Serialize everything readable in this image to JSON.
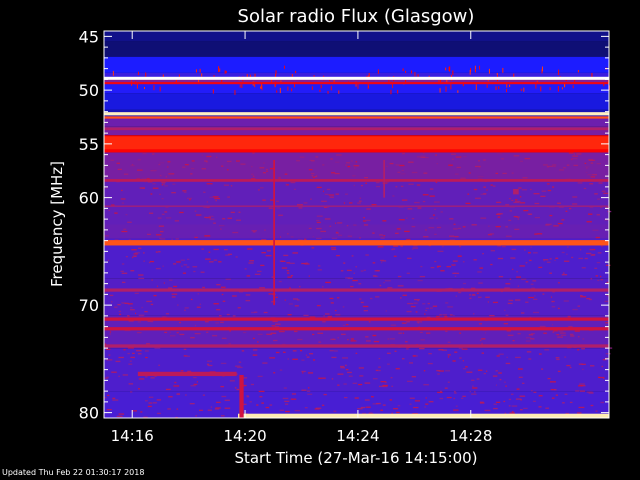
{
  "chart_data": {
    "type": "heatmap",
    "title": "Solar radio Flux (Glasgow)",
    "xlabel": "Start Time (27-Mar-16 14:15:00)",
    "ylabel": "Frequency [MHz]",
    "x_unit": "minutes after 14:15:00",
    "xlim": [
      0,
      17.9
    ],
    "ylim": [
      44.5,
      80.5
    ],
    "x_ticks": [
      {
        "value": 1,
        "label": "14:16"
      },
      {
        "value": 5,
        "label": "14:20"
      },
      {
        "value": 9,
        "label": "14:24"
      },
      {
        "value": 13,
        "label": "14:28"
      }
    ],
    "y_ticks": [
      {
        "value": 45,
        "label": "45"
      },
      {
        "value": 50,
        "label": "50"
      },
      {
        "value": 55,
        "label": "55"
      },
      {
        "value": 60,
        "label": "60"
      },
      {
        "value": 70,
        "label": "70"
      },
      {
        "value": 80,
        "label": "80"
      }
    ],
    "y_minor_ticks": [
      46,
      47,
      48,
      49,
      51,
      52,
      53,
      54,
      56,
      57,
      58,
      59,
      61,
      62,
      63,
      64,
      65,
      66,
      67,
      68,
      69,
      71,
      72,
      73,
      74,
      75,
      76,
      77,
      78,
      79
    ],
    "colorscale": [
      "#000000",
      "#10107a",
      "#1c1cff",
      "#6a1fb0",
      "#b01f6a",
      "#ff0000",
      "#ff8c2a",
      "#ffe9a0",
      "#ffffff"
    ],
    "background_rows": [
      {
        "f_from": 44.5,
        "f_to": 45.5,
        "level": 0.14
      },
      {
        "f_from": 45.5,
        "f_to": 46.9,
        "level": 0.12
      },
      {
        "f_from": 46.9,
        "f_to": 48.4,
        "level": 0.25
      },
      {
        "f_from": 48.4,
        "f_to": 48.8,
        "level": 0.3
      },
      {
        "f_from": 48.8,
        "f_to": 49.3,
        "level": 0.42
      },
      {
        "f_from": 49.3,
        "f_to": 50.3,
        "level": 0.26
      },
      {
        "f_from": 50.3,
        "f_to": 51.8,
        "level": 0.22
      },
      {
        "f_from": 51.8,
        "f_to": 52.4,
        "level": 0.18
      },
      {
        "f_from": 52.4,
        "f_to": 53.4,
        "level": 0.38
      },
      {
        "f_from": 53.4,
        "f_to": 54.2,
        "level": 0.4
      },
      {
        "f_from": 54.2,
        "f_to": 55.8,
        "level": 0.62
      },
      {
        "f_from": 55.8,
        "f_to": 58.5,
        "level": 0.4
      },
      {
        "f_from": 58.5,
        "f_to": 62.5,
        "level": 0.36
      },
      {
        "f_from": 62.5,
        "f_to": 63.8,
        "level": 0.37
      },
      {
        "f_from": 63.8,
        "f_to": 67.5,
        "level": 0.33
      },
      {
        "f_from": 67.5,
        "f_to": 71,
        "level": 0.34
      },
      {
        "f_from": 71,
        "f_to": 74,
        "level": 0.36
      },
      {
        "f_from": 74,
        "f_to": 78,
        "level": 0.33
      },
      {
        "f_from": 78,
        "f_to": 80.5,
        "level": 0.32
      }
    ],
    "bands": [
      {
        "freq": 48.9,
        "width": 0.28,
        "level": 1.0
      },
      {
        "freq": 49.35,
        "width": 0.2,
        "level": 0.6
      },
      {
        "freq": 52.2,
        "width": 0.3,
        "level": 0.92
      },
      {
        "freq": 52.55,
        "width": 0.2,
        "level": 0.7
      },
      {
        "freq": 54.9,
        "width": 1.2,
        "level": 0.66
      },
      {
        "freq": 53.6,
        "width": 0.25,
        "level": 0.5
      },
      {
        "freq": 58.4,
        "width": 0.25,
        "level": 0.52
      },
      {
        "freq": 60.8,
        "width": 0.15,
        "level": 0.46
      },
      {
        "freq": 64.2,
        "width": 0.5,
        "level": 0.7
      },
      {
        "freq": 68.6,
        "width": 0.3,
        "level": 0.5
      },
      {
        "freq": 71.3,
        "width": 0.3,
        "level": 0.55
      },
      {
        "freq": 72.2,
        "width": 0.3,
        "level": 0.55
      },
      {
        "freq": 73.8,
        "width": 0.3,
        "level": 0.5
      }
    ],
    "events": [
      {
        "t_from": 4.75,
        "t_to": 17.9,
        "f_from": 80.1,
        "f_to": 80.5,
        "level": 0.9
      },
      {
        "t_from": 4.8,
        "t_to": 4.95,
        "f_from": 76.5,
        "f_to": 80.5,
        "level": 0.55
      },
      {
        "t_from": 1.2,
        "t_to": 4.7,
        "f_from": 76.2,
        "f_to": 76.6,
        "level": 0.52
      },
      {
        "t_from": 6.0,
        "t_to": 6.06,
        "f_from": 56.5,
        "f_to": 70,
        "level": 0.55
      },
      {
        "t_from": 9.9,
        "t_to": 9.96,
        "f_from": 56.5,
        "f_to": 60,
        "level": 0.5
      },
      {
        "t_from": 14.5,
        "t_to": 14.7,
        "f_from": 59.2,
        "f_to": 59.7,
        "level": 0.5
      }
    ],
    "noise_seed": 7
  },
  "footer": {
    "updated": "Updated Thu Feb 22 01:30:17 2018"
  }
}
